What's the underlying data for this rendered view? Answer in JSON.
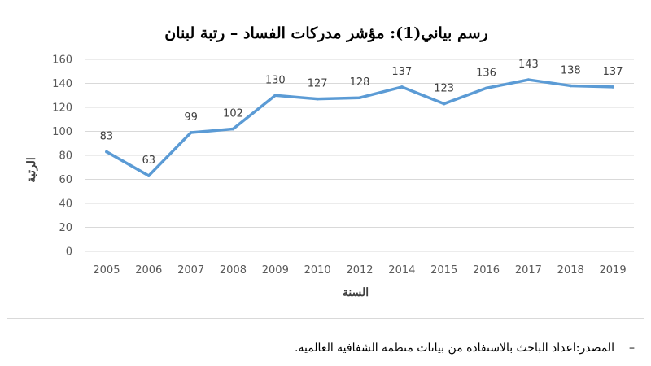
{
  "chart_data": {
    "type": "line",
    "title": "رسم بياني(1): مؤشر مدركات الفساد – رتبة لبنان",
    "xlabel": "السنة",
    "ylabel": "الرتبة",
    "categories": [
      "2005",
      "2006",
      "2007",
      "2008",
      "2009",
      "2010",
      "2012",
      "2014",
      "2015",
      "2016",
      "2017",
      "2018",
      "2019"
    ],
    "series": [
      {
        "values": [
          83,
          63,
          99,
          102,
          130,
          127,
          128,
          137,
          123,
          136,
          143,
          138,
          137
        ]
      }
    ],
    "ylim": [
      0,
      160
    ],
    "yticks": [
      0,
      20,
      40,
      60,
      80,
      100,
      120,
      140,
      160
    ],
    "grid": true,
    "line_color": "#5b9bd5",
    "grid_color": "#d9d9d9"
  },
  "source_note": {
    "dash": "–",
    "text": "المصدر:اعداد الباحث بالاستفادة من بيانات منظمة الشفافية العالمية."
  }
}
